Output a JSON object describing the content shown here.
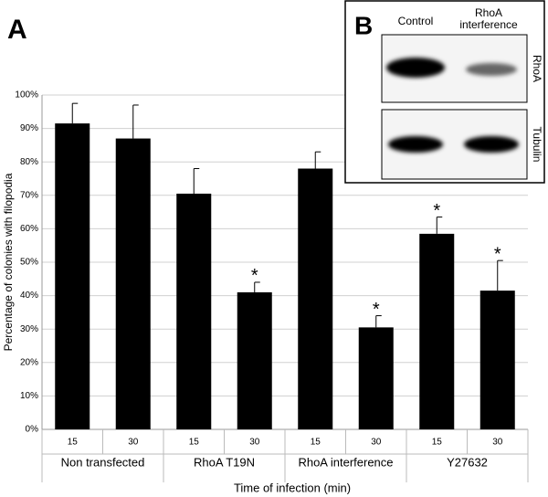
{
  "chart_data": {
    "type": "bar",
    "panel_label": "A",
    "categories": [
      "15",
      "30",
      "15",
      "30",
      "15",
      "30",
      "15",
      "30"
    ],
    "groups": [
      "Non transfected",
      "RhoA  T19N",
      "RhoA interference",
      "Y27632"
    ],
    "values": [
      91.5,
      87,
      70.5,
      41,
      78,
      30.5,
      58.5,
      41.5
    ],
    "errors": [
      6,
      10,
      7.5,
      3,
      5,
      3.5,
      5,
      9
    ],
    "markers": [
      null,
      null,
      null,
      "*",
      null,
      "*",
      "*",
      "*"
    ],
    "color": "#000000",
    "x_label": "Time of infection (min)",
    "y_label": "Percentage of colonies with filopodia",
    "ylim": [
      0,
      100
    ],
    "yticks": [
      {
        "value": 0,
        "label": "0%"
      },
      {
        "value": 10,
        "label": "10%"
      },
      {
        "value": 20,
        "label": "20%"
      },
      {
        "value": 30,
        "label": "30%"
      },
      {
        "value": 40,
        "label": "40%"
      },
      {
        "value": 50,
        "label": "50%"
      },
      {
        "value": 60,
        "label": "60%"
      },
      {
        "value": 70,
        "label": "70%"
      },
      {
        "value": 80,
        "label": "80%"
      },
      {
        "value": 90,
        "label": "90%"
      },
      {
        "value": 100,
        "label": "100%"
      }
    ],
    "grid": true
  },
  "blot": {
    "panel_label": "B",
    "lanes": [
      "Control",
      "RhoA interference"
    ],
    "rows": [
      "RhoA",
      "Tubulin"
    ]
  }
}
